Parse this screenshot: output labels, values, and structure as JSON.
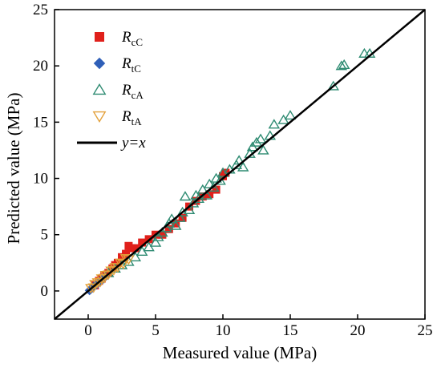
{
  "chart_data": {
    "type": "scatter",
    "xlabel": "Measured value (MPa)",
    "ylabel": "Predicted value (MPa)",
    "xlim": [
      -2.5,
      25
    ],
    "ylim": [
      -2.5,
      25
    ],
    "xticks": [
      "0",
      "5",
      "10",
      "15",
      "20",
      "25"
    ],
    "yticks": [
      "0",
      "5",
      "10",
      "15",
      "20",
      "25"
    ],
    "legend_position": "top-left",
    "grid": false,
    "series": [
      {
        "name": "RcC",
        "name_main": "R",
        "name_sub": "cC",
        "marker": "square",
        "color": "#e0201b",
        "points": [
          [
            0.5,
            0.5
          ],
          [
            0.8,
            0.9
          ],
          [
            1.0,
            1.1
          ],
          [
            1.2,
            1.4
          ],
          [
            1.5,
            1.6
          ],
          [
            1.8,
            2.0
          ],
          [
            2.0,
            2.3
          ],
          [
            2.2,
            2.5
          ],
          [
            2.5,
            3.0
          ],
          [
            2.8,
            3.3
          ],
          [
            3.0,
            4.0
          ],
          [
            3.2,
            3.8
          ],
          [
            3.5,
            3.8
          ],
          [
            4.0,
            4.3
          ],
          [
            4.5,
            4.6
          ],
          [
            5.0,
            5.0
          ],
          [
            5.5,
            5.0
          ],
          [
            6.0,
            5.5
          ],
          [
            6.5,
            6.0
          ],
          [
            7.0,
            6.5
          ],
          [
            7.5,
            7.5
          ],
          [
            8.0,
            8.0
          ],
          [
            8.5,
            8.4
          ],
          [
            9.0,
            8.6
          ],
          [
            9.5,
            9.0
          ],
          [
            10.0,
            10.2
          ],
          [
            10.2,
            10.5
          ]
        ]
      },
      {
        "name": "RtC",
        "name_main": "R",
        "name_sub": "tC",
        "marker": "diamond",
        "color": "#2f5fb8",
        "points": [
          [
            0.1,
            0.05
          ],
          [
            0.2,
            0.15
          ],
          [
            0.3,
            0.3
          ],
          [
            0.4,
            0.35
          ],
          [
            0.5,
            0.5
          ],
          [
            0.6,
            0.55
          ],
          [
            0.7,
            0.7
          ],
          [
            0.8,
            0.8
          ],
          [
            0.9,
            0.85
          ],
          [
            1.0,
            1.0
          ],
          [
            1.1,
            1.05
          ],
          [
            1.2,
            1.2
          ]
        ]
      },
      {
        "name": "RcA",
        "name_main": "R",
        "name_sub": "cA",
        "marker": "triangle-up",
        "color": "#2e8b72",
        "points": [
          [
            1.5,
            1.6
          ],
          [
            2.0,
            2.0
          ],
          [
            2.5,
            2.3
          ],
          [
            3.0,
            2.6
          ],
          [
            3.5,
            3.0
          ],
          [
            4.0,
            3.5
          ],
          [
            4.5,
            3.9
          ],
          [
            5.0,
            4.3
          ],
          [
            5.2,
            4.8
          ],
          [
            5.5,
            5.2
          ],
          [
            5.8,
            5.6
          ],
          [
            6.0,
            6.0
          ],
          [
            6.2,
            6.4
          ],
          [
            6.5,
            5.8
          ],
          [
            6.8,
            6.5
          ],
          [
            7.0,
            7.0
          ],
          [
            7.2,
            8.4
          ],
          [
            7.5,
            7.2
          ],
          [
            7.8,
            7.8
          ],
          [
            8.0,
            8.5
          ],
          [
            8.2,
            8.2
          ],
          [
            8.5,
            9.0
          ],
          [
            8.8,
            8.5
          ],
          [
            9.0,
            9.5
          ],
          [
            9.3,
            9.2
          ],
          [
            9.5,
            10.0
          ],
          [
            9.8,
            9.8
          ],
          [
            10.0,
            10.5
          ],
          [
            10.5,
            10.8
          ],
          [
            11.0,
            11.2
          ],
          [
            11.2,
            11.6
          ],
          [
            11.5,
            11.0
          ],
          [
            12.0,
            12.2
          ],
          [
            12.2,
            12.8
          ],
          [
            12.5,
            13.2
          ],
          [
            12.8,
            13.5
          ],
          [
            13.0,
            12.5
          ],
          [
            13.5,
            13.8
          ],
          [
            13.8,
            14.8
          ],
          [
            14.5,
            15.2
          ],
          [
            15.0,
            15.6
          ],
          [
            18.2,
            18.2
          ],
          [
            18.8,
            20.0
          ],
          [
            19.0,
            20.1
          ],
          [
            20.5,
            21.1
          ],
          [
            20.9,
            21.1
          ]
        ]
      },
      {
        "name": "RtA",
        "name_main": "R",
        "name_sub": "tA",
        "marker": "triangle-down",
        "color": "#e3a03a",
        "points": [
          [
            0.2,
            0.25
          ],
          [
            0.4,
            0.3
          ],
          [
            0.5,
            0.6
          ],
          [
            0.7,
            0.75
          ],
          [
            0.9,
            0.8
          ],
          [
            1.0,
            1.1
          ],
          [
            1.2,
            1.15
          ],
          [
            1.3,
            1.4
          ],
          [
            1.5,
            1.45
          ],
          [
            1.7,
            1.8
          ],
          [
            1.9,
            1.85
          ],
          [
            2.0,
            2.1
          ],
          [
            2.2,
            2.1
          ],
          [
            2.4,
            2.5
          ],
          [
            2.6,
            2.4
          ],
          [
            2.8,
            2.9
          ],
          [
            3.0,
            2.8
          ]
        ]
      },
      {
        "name": "y=x",
        "marker": "line",
        "color": "#000000",
        "points": [
          [
            -2.5,
            -2.5
          ],
          [
            25,
            25
          ]
        ]
      }
    ]
  },
  "legend": {
    "line_label": "y=x"
  }
}
